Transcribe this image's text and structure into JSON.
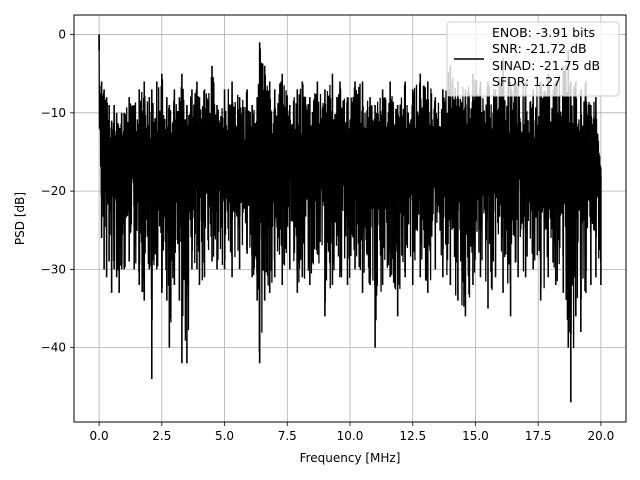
{
  "chart_data": {
    "type": "line",
    "title": "",
    "xlabel": "Frequency [MHz]",
    "ylabel": "PSD [dB]",
    "xlim": [
      -1.0,
      21.0
    ],
    "ylim": [
      -49.5,
      2.5
    ],
    "xticks": [
      0.0,
      2.5,
      5.0,
      7.5,
      10.0,
      12.5,
      15.0,
      17.5,
      20.0
    ],
    "xtick_labels": [
      "0.0",
      "2.5",
      "5.0",
      "7.5",
      "10.0",
      "12.5",
      "15.0",
      "17.5",
      "20.0"
    ],
    "yticks": [
      0,
      -10,
      -20,
      -30,
      -40
    ],
    "ytick_labels": [
      "0",
      "−10",
      "−20",
      "−30",
      "−40"
    ],
    "grid": true,
    "legend_position": "top-right",
    "legend_lines": [
      "ENOB: -3.91 bits",
      "SNR: -21.72 dB",
      "SINAD: -21.75 dB",
      "SFDR: 1.27"
    ],
    "series": [
      {
        "color": "#000000",
        "x": [
          0.0,
          0.1,
          0.2,
          0.3,
          0.4,
          0.5,
          0.6,
          0.7,
          0.8,
          0.9,
          1.0,
          1.2,
          1.4,
          1.6,
          1.8,
          2.0,
          2.1,
          2.3,
          2.5,
          2.7,
          2.8,
          3.0,
          3.2,
          3.3,
          3.5,
          3.7,
          3.9,
          4.0,
          4.2,
          4.5,
          4.7,
          5.0,
          5.3,
          5.6,
          5.9,
          6.1,
          6.3,
          6.4,
          6.6,
          6.8,
          7.0,
          7.3,
          7.6,
          7.9,
          8.1,
          8.4,
          8.7,
          9.0,
          9.3,
          9.6,
          9.9,
          10.2,
          10.5,
          10.8,
          11.0,
          11.3,
          11.6,
          11.9,
          12.2,
          12.5,
          12.8,
          13.1,
          13.4,
          13.7,
          14.0,
          14.3,
          14.6,
          14.9,
          15.2,
          15.5,
          15.8,
          16.1,
          16.4,
          16.7,
          17.0,
          17.3,
          17.6,
          17.9,
          18.2,
          18.5,
          18.7,
          18.8,
          19.0,
          19.2,
          19.4,
          19.6,
          19.8,
          20.0
        ],
        "lower": [
          -2,
          -26,
          -30,
          -31,
          -29,
          -33,
          -30,
          -31,
          -33,
          -30,
          -30,
          -29,
          -30,
          -32,
          -34,
          -30,
          -44,
          -30,
          -33,
          -34,
          -40,
          -32,
          -34,
          -42,
          -42,
          -30,
          -30,
          -32,
          -31,
          -29,
          -30,
          -30,
          -31,
          -30,
          -28,
          -31,
          -34,
          -42,
          -34,
          -33,
          -31,
          -32,
          -30,
          -33,
          -31,
          -32,
          -28,
          -36,
          -32,
          -31,
          -32,
          -30,
          -33,
          -32,
          -40,
          -32,
          -31,
          -36,
          -31,
          -32,
          -31,
          -33,
          -30,
          -31,
          -32,
          -34,
          -36,
          -32,
          -31,
          -35,
          -31,
          -33,
          -36,
          -31,
          -31,
          -30,
          -34,
          -31,
          -32,
          -33,
          -40,
          -47,
          -36,
          -38,
          -33,
          -32,
          -31,
          -32
        ],
        "upper": [
          0,
          -6,
          -7,
          -8,
          -9,
          -11,
          -9,
          -10,
          -12,
          -10,
          -10,
          -8,
          -9,
          -7,
          -6,
          -8,
          -7,
          -6,
          -5,
          -8,
          -9,
          -7,
          -8,
          -5,
          -9,
          -7,
          -6,
          -8,
          -7,
          -4,
          -9,
          -7,
          -6,
          -8,
          -7,
          -9,
          -8,
          -1,
          -4,
          -6,
          -7,
          -5,
          -9,
          -7,
          -6,
          -8,
          -6,
          -7,
          -5,
          -6,
          -8,
          -6,
          -6,
          -8,
          -9,
          -7,
          -6,
          -9,
          -6,
          -7,
          -5,
          -6,
          -8,
          -7,
          -4,
          -6,
          -7,
          -5,
          -6,
          -6,
          -7,
          -3,
          -6,
          -6,
          -6,
          -7,
          -6,
          -5,
          -6,
          -4,
          -2,
          -6,
          -6,
          -7,
          -6,
          -9,
          -8,
          -18
        ]
      }
    ]
  }
}
